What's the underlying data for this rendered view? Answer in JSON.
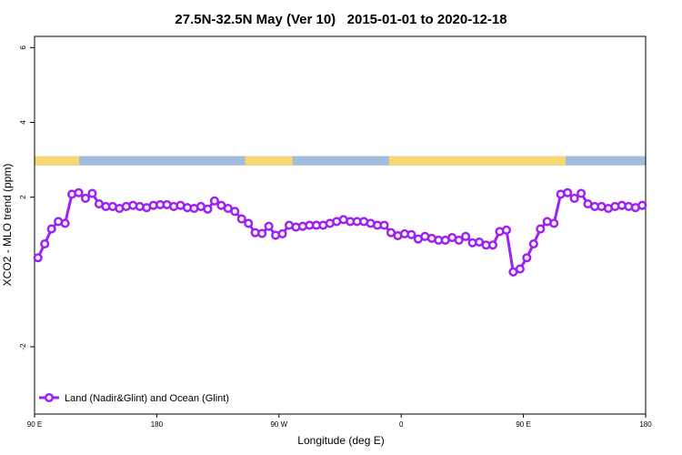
{
  "chart_data": {
    "type": "line",
    "title": "27.5N-32.5N May (Ver 10)   2015-01-01 to 2020-12-18",
    "x_label": "Longitude (deg E)",
    "y_label": "XCO2 - MLO trend (ppm)",
    "xlim": [
      90,
      540
    ],
    "ylim": [
      -3.8,
      6.3
    ],
    "xticks": [
      {
        "value": 90,
        "label": "90 E"
      },
      180,
      {
        "value": 270,
        "label": "90 W"
      },
      {
        "value": 360,
        "label": "0"
      },
      {
        "value": 450,
        "label": "90 E"
      },
      {
        "value": 540,
        "label": "180"
      }
    ],
    "yticks": [
      -2,
      2,
      4,
      6
    ],
    "legend": "bottom-left",
    "land_band": {
      "ylim": [
        2.85,
        3.1
      ],
      "land_color": "#f7d774",
      "ocean_color": "#a3bbdc",
      "land": [
        [
          90,
          123
        ],
        [
          245,
          280
        ],
        [
          351,
          481
        ]
      ]
    },
    "x": [
      92.5,
      97.5,
      102.5,
      107.5,
      112.5,
      117.5,
      122.5,
      127.5,
      132.5,
      137.5,
      142.5,
      147.5,
      152.5,
      157.5,
      162.5,
      167.5,
      172.5,
      177.5,
      182.5,
      187.5,
      192.5,
      197.5,
      202.5,
      207.5,
      212.5,
      217.5,
      222.5,
      227.5,
      232.5,
      237.5,
      242.5,
      247.5,
      252.5,
      257.5,
      262.5,
      267.5,
      272.5,
      277.5,
      282.5,
      287.5,
      292.5,
      297.5,
      302.5,
      307.5,
      312.5,
      317.5,
      322.5,
      327.5,
      332.5,
      337.5,
      342.5,
      347.5,
      352.5,
      357.5,
      362.5,
      367.5,
      372.5,
      377.5,
      382.5,
      387.5,
      392.5,
      397.5,
      402.5,
      407.5,
      412.5,
      417.5,
      422.5,
      427.5,
      432.5,
      437.5,
      442.5,
      447.5,
      452.5,
      457.5,
      462.5,
      467.5,
      472.5,
      477.5,
      482.5,
      487.5,
      492.5,
      497.5,
      502.5,
      507.5,
      512.5,
      517.5,
      522.5,
      527.5,
      532.5,
      537.5
    ],
    "series": [
      {
        "name": "Land (Nadir&Glint) and Ocean (Glint)",
        "color": "#a020f0",
        "values": [
          0.38,
          0.75,
          1.15,
          1.35,
          1.3,
          2.08,
          2.12,
          1.97,
          2.1,
          1.82,
          1.75,
          1.75,
          1.7,
          1.75,
          1.78,
          1.75,
          1.72,
          1.78,
          1.8,
          1.8,
          1.75,
          1.78,
          1.72,
          1.7,
          1.75,
          1.68,
          1.9,
          1.78,
          1.7,
          1.62,
          1.42,
          1.3,
          1.05,
          1.03,
          1.22,
          0.98,
          1.02,
          1.25,
          1.2,
          1.22,
          1.25,
          1.25,
          1.25,
          1.3,
          1.35,
          1.4,
          1.35,
          1.35,
          1.35,
          1.3,
          1.25,
          1.25,
          1.05,
          0.97,
          1.02,
          1.0,
          0.88,
          0.95,
          0.9,
          0.85,
          0.85,
          0.92,
          0.85,
          0.95,
          0.78,
          0.8,
          0.72,
          0.72,
          1.08,
          1.12,
          0.0,
          0.08,
          0.38,
          0.75,
          1.15,
          1.35,
          1.3,
          2.08,
          2.12,
          1.97,
          2.1,
          1.82,
          1.75,
          1.75,
          1.7,
          1.75,
          1.78,
          1.75,
          1.72,
          1.78
        ]
      }
    ]
  }
}
